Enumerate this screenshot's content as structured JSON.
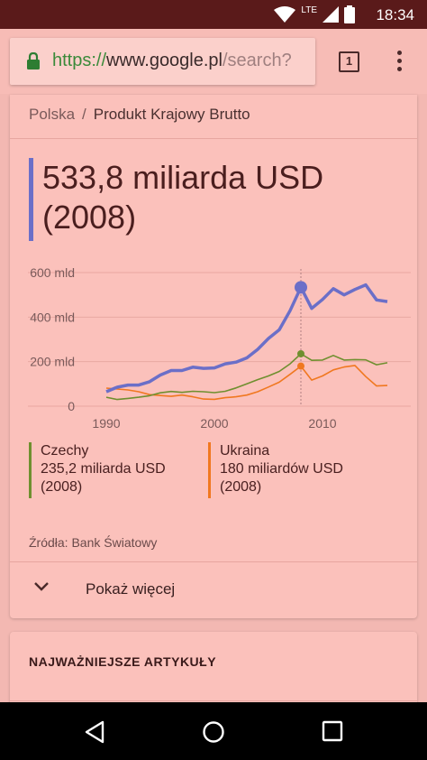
{
  "status_bar": {
    "time": "18:34",
    "network": "LTE"
  },
  "browser": {
    "url_scheme": "https://",
    "url_host": "www.google.pl",
    "url_path": "/search?",
    "tab_count": "1"
  },
  "result": {
    "breadcrumb": [
      "Polska",
      "Produkt Krajowy Brutto"
    ],
    "value_line1": "533,8 miliarda USD",
    "value_line2": "(2008)"
  },
  "chart_data": {
    "type": "line",
    "y_tick_labels": [
      "600 mld",
      "400 mld",
      "200 mld",
      "0"
    ],
    "x_tick_labels": [
      "1990",
      "2000",
      "2010"
    ],
    "ylim": [
      0,
      600
    ],
    "xlim": [
      1989,
      2017
    ],
    "grid": true,
    "highlight_year": 2008,
    "series": [
      {
        "name": "Polska",
        "color": "#6b6fc8",
        "x": [
          1990,
          1991,
          1992,
          1993,
          1994,
          1995,
          1996,
          1997,
          1998,
          1999,
          2000,
          2001,
          2002,
          2003,
          2004,
          2005,
          2006,
          2007,
          2008,
          2009,
          2010,
          2011,
          2012,
          2013,
          2014,
          2015,
          2016
        ],
        "values": [
          65,
          85,
          95,
          95,
          110,
          140,
          160,
          160,
          175,
          170,
          172,
          190,
          198,
          217,
          255,
          304,
          343,
          429,
          533.8,
          439,
          479,
          528,
          500,
          524,
          545,
          477,
          470
        ]
      },
      {
        "name": "Czechy",
        "color": "#6f8f2f",
        "x": [
          1990,
          1991,
          1992,
          1993,
          1994,
          1995,
          1996,
          1997,
          1998,
          1999,
          2000,
          2001,
          2002,
          2003,
          2004,
          2005,
          2006,
          2007,
          2008,
          2009,
          2010,
          2011,
          2012,
          2013,
          2014,
          2015,
          2016
        ],
        "values": [
          40,
          30,
          35,
          40,
          47,
          60,
          66,
          62,
          67,
          65,
          61,
          67,
          82,
          100,
          119,
          136,
          156,
          190,
          235.2,
          206,
          207,
          228,
          207,
          209,
          208,
          186,
          195
        ]
      },
      {
        "name": "Ukraina",
        "color": "#f07820",
        "x": [
          1990,
          1991,
          1992,
          1993,
          1994,
          1995,
          1996,
          1997,
          1998,
          1999,
          2000,
          2001,
          2002,
          2003,
          2004,
          2005,
          2006,
          2007,
          2008,
          2009,
          2010,
          2011,
          2012,
          2013,
          2014,
          2015,
          2016
        ],
        "values": [
          81,
          77,
          73,
          65,
          52,
          48,
          44,
          50,
          42,
          32,
          31,
          38,
          42,
          50,
          65,
          86,
          108,
          143,
          180,
          117,
          136,
          163,
          176,
          183,
          133,
          91,
          93
        ]
      }
    ]
  },
  "legend": [
    {
      "name": "Czechy",
      "value": "235,2 miliarda USD",
      "year": "(2008)",
      "color": "#6f8f2f"
    },
    {
      "name": "Ukraina",
      "value": "180 miliardów USD",
      "year": "(2008)",
      "color": "#f07820"
    }
  ],
  "source": "Źródła: Bank Światowy",
  "show_more_label": "Pokaż więcej",
  "articles_heading": "NAJWAŻNIEJSZE ARTYKUŁY"
}
